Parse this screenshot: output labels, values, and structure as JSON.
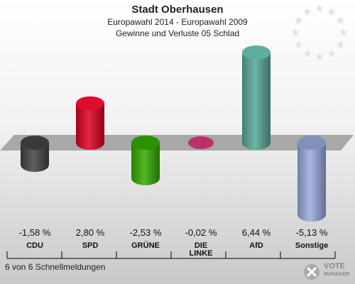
{
  "header": {
    "title": "Stadt Oberhausen",
    "subtitle": "Europawahl 2014 - Europawahl 2009",
    "subtitle2": "Gewinne und Verluste 05 Schlad"
  },
  "footer": {
    "text": "6 von 6 Schnellmeldungen"
  },
  "logo": {
    "line1": "VOTE",
    "line2": "MANAGER"
  },
  "chart_data": {
    "type": "bar",
    "categories": [
      "CDU",
      "SPD",
      "GRÜNE",
      "DIE LINKE",
      "AfD",
      "Sonstige"
    ],
    "values": [
      -1.58,
      2.8,
      -2.53,
      -0.02,
      6.44,
      -5.13
    ],
    "value_labels": [
      "-1,58 %",
      "2,80 %",
      "-2,53 %",
      "-0,02 %",
      "6,44 %",
      "-5,13 %"
    ],
    "colors": [
      "#444444",
      "#dd0022",
      "#33aa00",
      "#bb3366",
      "#55aa99",
      "#99aadd"
    ],
    "ylim": [
      -5.13,
      6.44
    ],
    "grid": false
  }
}
